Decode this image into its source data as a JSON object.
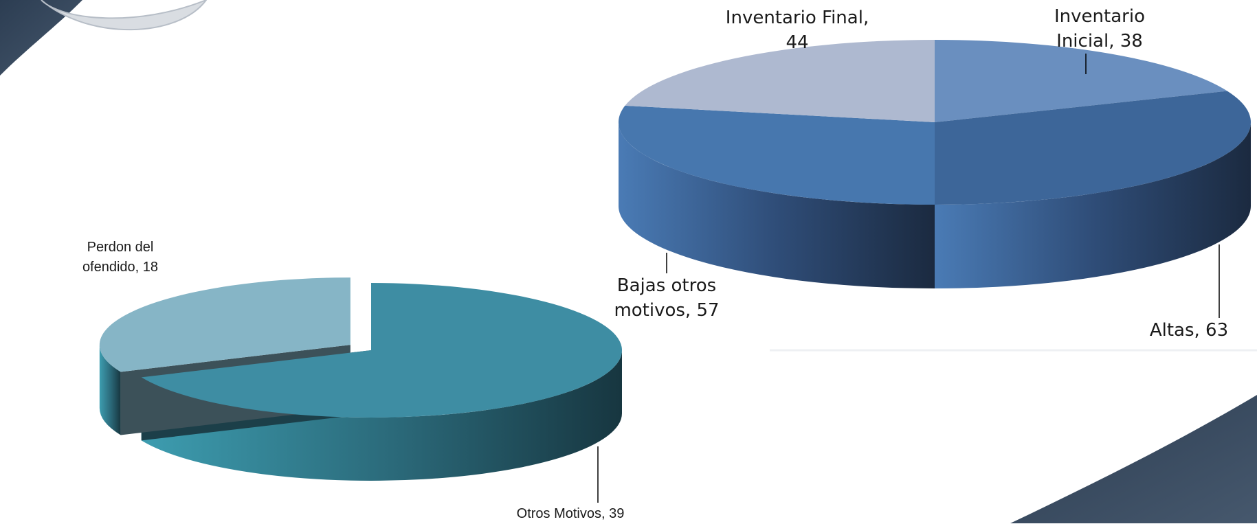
{
  "chart_data": [
    {
      "type": "pie",
      "variant": "3d",
      "title": "",
      "slices": [
        {
          "label": "Inventario Inicial",
          "value": 38,
          "color": "#6a8fbf",
          "display": "Inventario Inicial, 38",
          "line1": "Inventario",
          "line2": "Inicial, 38"
        },
        {
          "label": "Altas",
          "value": 63,
          "color": "#3d6699",
          "display": "Altas, 63"
        },
        {
          "label": "Bajas otros motivos",
          "value": 57,
          "color": "#4777ae",
          "display": "Bajas otros motivos, 57",
          "line1": "Bajas otros",
          "line2": "motivos, 57"
        },
        {
          "label": "Inventario Final",
          "value": 44,
          "color": "#aeb9d0",
          "display": "Inventario Final, 44",
          "line1": "Inventario Final,",
          "line2": "44"
        }
      ]
    },
    {
      "type": "pie",
      "variant": "3d-exploded",
      "title": "",
      "slices": [
        {
          "label": "Otros Motivos",
          "value": 39,
          "color": "#3e8da3",
          "display": "Otros Motivos, 39"
        },
        {
          "label": "Perdon del ofendido",
          "value": 18,
          "color": "#86b5c6",
          "display": "Perdon del ofendido, 18",
          "line1": "Perdon del",
          "line2": "ofendido, 18"
        }
      ]
    }
  ]
}
